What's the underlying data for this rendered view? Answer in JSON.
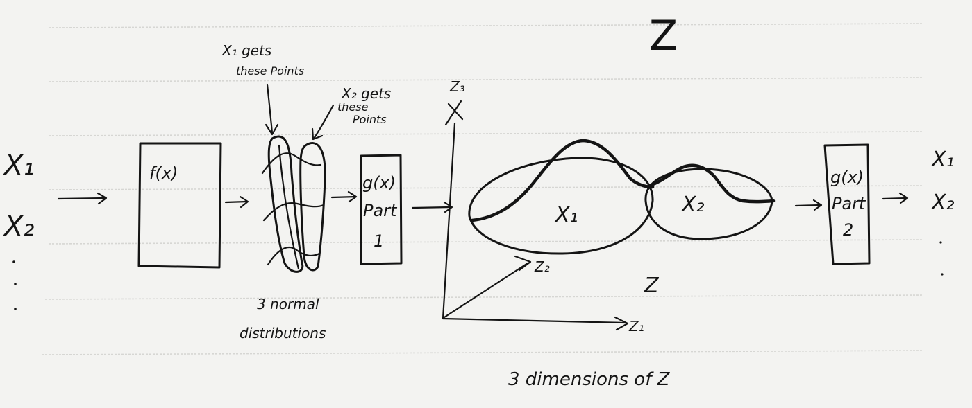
{
  "title": "Z",
  "inputs": {
    "x1": "X₁",
    "x2": "X₂"
  },
  "encoder": {
    "label": "f(x)"
  },
  "distributions": {
    "x1_note_line1": "X₁ gets",
    "x1_note_line2": "these Points",
    "x2_note_line1": "X₂ gets",
    "x2_note_line2": "these",
    "x2_note_line3": "Points",
    "caption_line1": "3 normal",
    "caption_line2": "distributions"
  },
  "decoder_part1": {
    "line1": "g(x)",
    "line2": "Part",
    "line3": "1"
  },
  "latent_space": {
    "axis_z1": "Z₁",
    "axis_z2": "Z₂",
    "axis_z3": "Z₃",
    "cluster_x1": "X₁",
    "cluster_x2": "X₂",
    "space_label": "Z",
    "caption": "3 dimensions of Z"
  },
  "decoder_part2": {
    "line1": "g(x)",
    "line2": "Part",
    "line3": "2"
  },
  "outputs": {
    "x1": "X₁",
    "x2": "X₂"
  },
  "colors": {
    "ink": "#141414",
    "paper": "#f3f3f1",
    "rule_lines": "#d6d6d3"
  }
}
